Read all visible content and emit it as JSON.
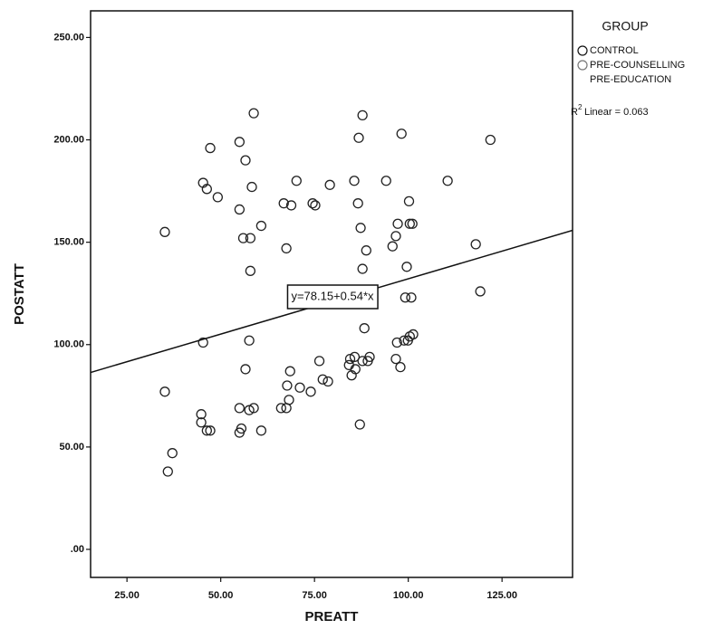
{
  "chart_data": {
    "type": "scatter",
    "x_label": "PREATT",
    "y_label": "POSTATT",
    "xlim": [
      15.3,
      143.8
    ],
    "ylim": [
      -13.7,
      263
    ],
    "xticks": [
      {
        "value": 25,
        "label": "25.00"
      },
      {
        "value": 50,
        "label": "50.00"
      },
      {
        "value": 75,
        "label": "75.00"
      },
      {
        "value": 100,
        "label": "100.00"
      },
      {
        "value": 125,
        "label": "125.00"
      }
    ],
    "yticks": [
      {
        "value": 0,
        "label": ".00"
      },
      {
        "value": 50,
        "label": "50.00"
      },
      {
        "value": 100,
        "label": "100.00"
      },
      {
        "value": 150,
        "label": "150.00"
      },
      {
        "value": 200,
        "label": "200.00"
      },
      {
        "value": 250,
        "label": "250.00"
      }
    ],
    "color": "#222222",
    "x": [
      35.1,
      35.1,
      35.9,
      37.1,
      44.8,
      44.8,
      47.2,
      45.3,
      46.3,
      49.2,
      46.3,
      47.2,
      45.3,
      55,
      56.6,
      58.8,
      58.3,
      55,
      60.8,
      56,
      57.9,
      57.9,
      57.6,
      56.6,
      55,
      55.5,
      55,
      57.6,
      58.8,
      60.8,
      70.2,
      66.8,
      68.8,
      67.5,
      68.5,
      67.7,
      68.2,
      66.1,
      67.5,
      71.1,
      74,
      74.5,
      75.2,
      79.1,
      76.3,
      77.2,
      78.6,
      85.6,
      86.8,
      87.8,
      86.6,
      87.3,
      88.8,
      87.8,
      88.3,
      84.5,
      85.7,
      84.2,
      85.9,
      84.9,
      87.8,
      89.2,
      89.7,
      87.1,
      94.1,
      98.2,
      97.2,
      96.7,
      95.8,
      100.2,
      100.4,
      101.1,
      99.6,
      99.2,
      100.8,
      97,
      98.9,
      96.7,
      97.9,
      99.9,
      100.4,
      101.3,
      110.5,
      121.9,
      118,
      119.2
    ],
    "y": [
      155,
      77,
      38,
      47,
      66,
      62,
      196,
      179,
      176,
      172,
      58,
      58,
      101,
      199,
      190,
      213,
      177,
      166,
      158,
      152,
      152,
      136,
      102,
      88,
      69,
      59,
      57,
      68,
      69,
      58,
      180,
      169,
      168,
      147,
      87,
      80,
      73,
      69,
      69,
      79,
      77,
      169,
      168,
      178,
      92,
      83,
      82,
      180,
      201,
      212,
      169,
      157,
      146,
      137,
      108,
      93,
      94,
      90,
      88,
      85,
      92,
      92,
      94,
      61,
      180,
      203,
      159,
      153,
      148,
      170,
      159,
      159,
      138,
      123,
      123,
      101,
      102,
      93,
      89,
      102,
      104,
      105,
      180,
      200,
      149,
      126
    ],
    "fit_line": {
      "x": [
        15.3,
        143.8
      ],
      "y": [
        86.4,
        155.8
      ],
      "label": "y=78.15+0.54*x"
    },
    "legend": {
      "title": "GROUP",
      "entries": [
        "CONTROL",
        "PRE-COUNSELLING",
        "PRE-EDUCATION"
      ]
    },
    "r2_label": {
      "base": "R",
      "sup": "2",
      "text": "Linear = 0.063"
    }
  }
}
